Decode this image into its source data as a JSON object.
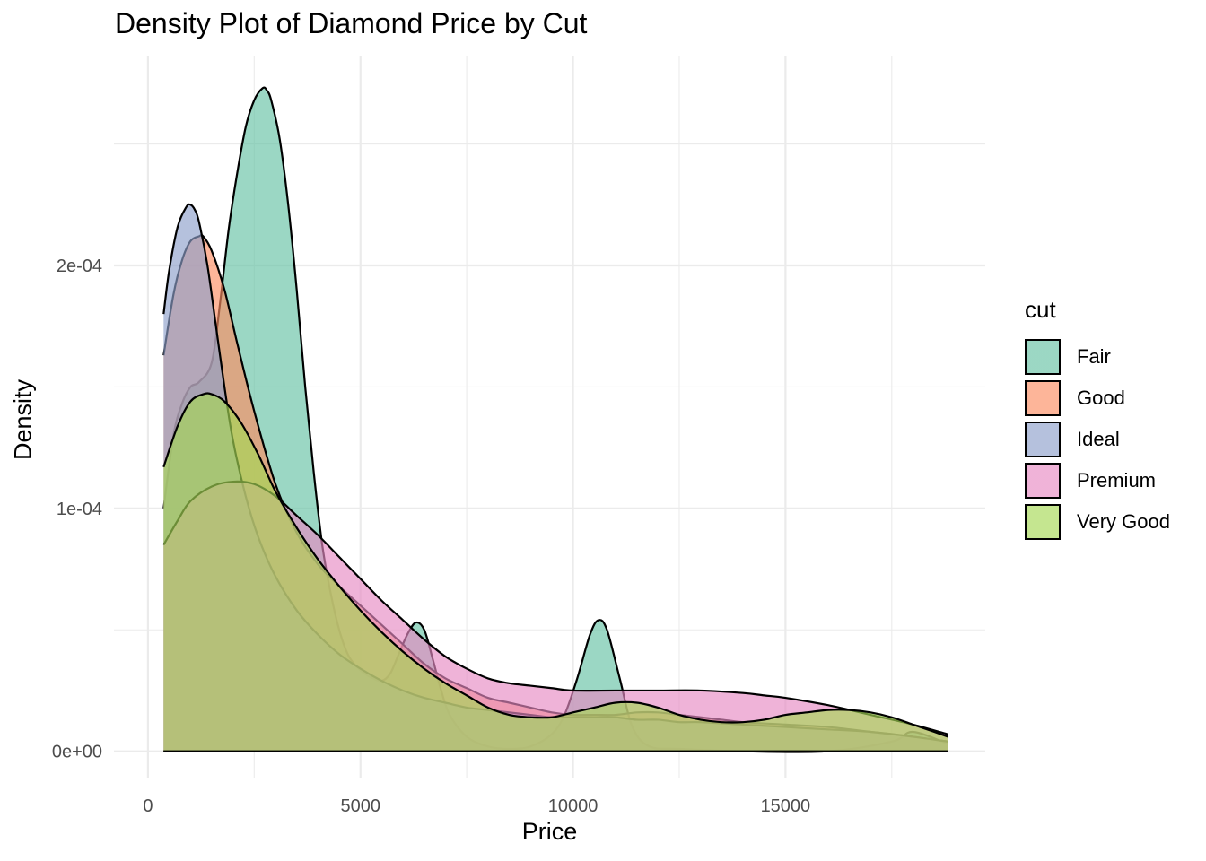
{
  "chart_data": {
    "type": "area",
    "title": "Density Plot of Diamond Price by Cut",
    "xlabel": "Price",
    "ylabel": "Density",
    "xlim": [
      -800,
      19700
    ],
    "ylim": [
      -1.12e-05,
      0.0002864
    ],
    "x_ticks": [
      0,
      5000,
      10000,
      15000
    ],
    "x_tick_labels": [
      "0",
      "5000",
      "10000",
      "15000"
    ],
    "y_ticks": [
      0,
      0.0001,
      0.0002
    ],
    "y_tick_labels": [
      "0e+00",
      "1e-04",
      "2e-04"
    ],
    "grid": true,
    "legend_title": "cut",
    "legend_position": "right",
    "series": [
      {
        "name": "Fair",
        "color": "#66C2A5",
        "x": [
          368,
          600,
          800,
          1000,
          1200,
          1500,
          1700,
          1900,
          2100,
          2300,
          2500,
          2700,
          2800,
          2900,
          3100,
          3300,
          3500,
          3700,
          3900,
          4100,
          4300,
          4500,
          4700,
          4900,
          5100,
          5300,
          5500,
          5700,
          5900,
          6100,
          6300,
          6500,
          6700,
          6900,
          7100,
          7500,
          8000,
          8500,
          9000,
          9500,
          9800,
          10100,
          10400,
          10600,
          10800,
          11100,
          11400,
          11800,
          12500,
          14000,
          16000,
          17500,
          18000,
          18823
        ],
        "y": [
          0.0001,
          0.00013,
          0.000143,
          0.00015,
          0.000152,
          0.00016,
          0.000185,
          0.000215,
          0.000238,
          0.000257,
          0.000268,
          0.000273,
          0.000272,
          0.000268,
          0.000252,
          0.000225,
          0.00019,
          0.00015,
          0.000115,
          8.5e-05,
          6.5e-05,
          5e-05,
          4e-05,
          3.5e-05,
          3.2e-05,
          3e-05,
          2.9e-05,
          3.2e-05,
          4e-05,
          4.8e-05,
          5.3e-05,
          5e-05,
          3.8e-05,
          2.5e-05,
          1.5e-05,
          6e-06,
          2e-06,
          1e-06,
          2e-06,
          7e-06,
          1.5e-05,
          3e-05,
          4.8e-05,
          5.4e-05,
          5e-05,
          3e-05,
          1e-05,
          2e-06,
          1e-06,
          0.0,
          0.0,
          4e-06,
          8e-06,
          3e-06
        ]
      },
      {
        "name": "Good",
        "color": "#FC8D62",
        "x": [
          368,
          600,
          800,
          1000,
          1200,
          1300,
          1500,
          1800,
          2100,
          2500,
          3000,
          3500,
          4000,
          4500,
          5000,
          5500,
          6000,
          6500,
          7000,
          7500,
          8000,
          8500,
          9000,
          9500,
          10000,
          10500,
          11000,
          11500,
          12000,
          12500,
          13000,
          13500,
          14000,
          15000,
          16000,
          17000,
          18000,
          18823
        ],
        "y": [
          0.000163,
          0.000188,
          0.000202,
          0.00021,
          0.000212,
          0.000212,
          0.000206,
          0.00019,
          0.000168,
          0.00014,
          0.00011,
          9e-05,
          7.7e-05,
          6.8e-05,
          6e-05,
          5.2e-05,
          4.4e-05,
          3.6e-05,
          3e-05,
          2.6e-05,
          2.2e-05,
          2e-05,
          1.8e-05,
          1.6e-05,
          1.5e-05,
          1.5e-05,
          1.5e-05,
          1.6e-05,
          1.6e-05,
          1.5e-05,
          1.4e-05,
          1.3e-05,
          1.2e-05,
          1.1e-05,
          1e-05,
          8e-06,
          6e-06,
          4e-06
        ]
      },
      {
        "name": "Ideal",
        "color": "#8DA0CB",
        "x": [
          368,
          500,
          700,
          900,
          1000,
          1100,
          1200,
          1400,
          1600,
          1800,
          2000,
          2300,
          2600,
          3000,
          3500,
          4000,
          4500,
          5000,
          5500,
          6000,
          6500,
          7000,
          7500,
          8000,
          8500,
          9000,
          9500,
          10000,
          10500,
          11000,
          11500,
          12000,
          12500,
          13000,
          14000,
          15000,
          16000,
          17000,
          18000,
          18823
        ],
        "y": [
          0.00018,
          0.000198,
          0.000216,
          0.000224,
          0.000225,
          0.000223,
          0.000218,
          0.0002,
          0.000175,
          0.00015,
          0.000128,
          0.000105,
          8.8e-05,
          7.2e-05,
          5.8e-05,
          4.8e-05,
          4e-05,
          3.4e-05,
          2.9e-05,
          2.5e-05,
          2.2e-05,
          2e-05,
          1.8e-05,
          1.7e-05,
          1.6e-05,
          1.5e-05,
          1.4e-05,
          1.4e-05,
          1.4e-05,
          1.4e-05,
          1.3e-05,
          1.3e-05,
          1.2e-05,
          1.2e-05,
          1.1e-05,
          1e-05,
          9e-06,
          8e-06,
          6e-06,
          4e-06
        ]
      },
      {
        "name": "Premium",
        "color": "#E78AC3",
        "x": [
          368,
          700,
          1000,
          1500,
          2000,
          2500,
          3000,
          3500,
          4000,
          4500,
          5000,
          5500,
          6000,
          6500,
          7000,
          7500,
          8000,
          8500,
          9000,
          9500,
          10000,
          11000,
          12000,
          13000,
          14000,
          14500,
          15000,
          16000,
          17000,
          18000,
          18823
        ],
        "y": [
          8.5e-05,
          9.5e-05,
          0.000103,
          0.000109,
          0.000111,
          0.00011,
          0.000105,
          9.7e-05,
          8.9e-05,
          8e-05,
          7.1e-05,
          6.2e-05,
          5.4e-05,
          4.6e-05,
          3.9e-05,
          3.4e-05,
          3e-05,
          2.8e-05,
          2.7e-05,
          2.6e-05,
          2.5e-05,
          2.5e-05,
          2.5e-05,
          2.5e-05,
          2.4e-05,
          2.3e-05,
          2.2e-05,
          1.9e-05,
          1.5e-05,
          1.1e-05,
          7e-06
        ]
      },
      {
        "name": "Very Good",
        "color": "#A6D854",
        "x": [
          368,
          700,
          1000,
          1300,
          1500,
          1800,
          2200,
          2600,
          3000,
          3500,
          4000,
          4500,
          5000,
          5500,
          6000,
          6500,
          7000,
          7500,
          8000,
          8500,
          9000,
          9500,
          10000,
          10500,
          11000,
          11500,
          12000,
          12500,
          13000,
          13500,
          14000,
          14500,
          15000,
          15500,
          16000,
          16500,
          17000,
          17500,
          18000,
          18500,
          18823
        ],
        "y": [
          0.000117,
          0.000134,
          0.000144,
          0.000147,
          0.000147,
          0.000144,
          0.000135,
          0.000122,
          0.000107,
          9.2e-05,
          7.9e-05,
          6.8e-05,
          5.8e-05,
          4.9e-05,
          4.1e-05,
          3.4e-05,
          2.8e-05,
          2.3e-05,
          1.8e-05,
          1.5e-05,
          1.4e-05,
          1.4e-05,
          1.6e-05,
          1.8e-05,
          2e-05,
          2e-05,
          1.8e-05,
          1.5e-05,
          1.3e-05,
          1.2e-05,
          1.2e-05,
          1.3e-05,
          1.5e-05,
          1.6e-05,
          1.7e-05,
          1.7e-05,
          1.6e-05,
          1.4e-05,
          1.1e-05,
          8e-06,
          6e-06
        ]
      }
    ]
  }
}
